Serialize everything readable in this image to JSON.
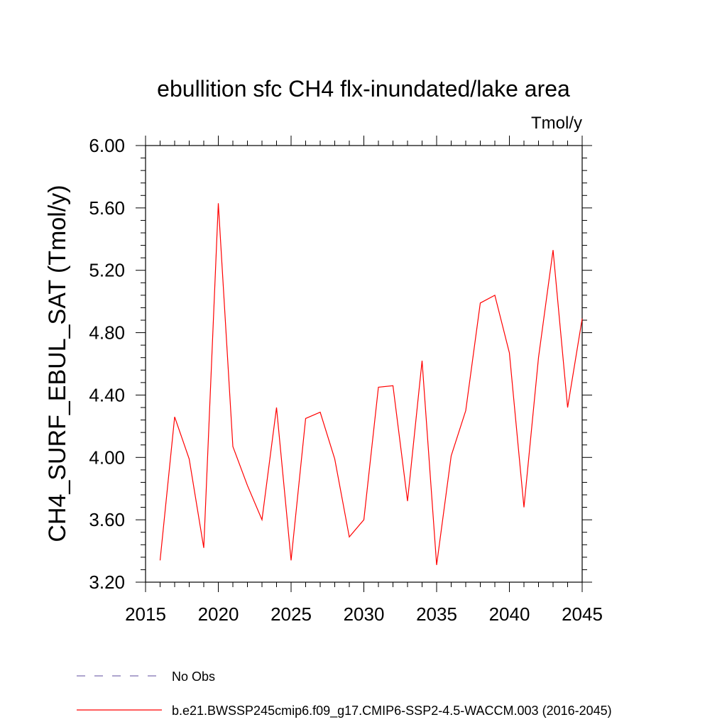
{
  "chart_data": {
    "type": "line",
    "title": "ebullition sfc CH4 flx-inundated/lake area",
    "units_label": "Tmol/y",
    "xlabel": "",
    "ylabel": "CH4_SURF_EBUL_SAT  (Tmol/y)",
    "xlim": [
      2015,
      2045
    ],
    "ylim": [
      3.2,
      6.0
    ],
    "x_ticks": [
      2015,
      2020,
      2025,
      2030,
      2035,
      2040,
      2045
    ],
    "x_tick_labels": [
      "2015",
      "2020",
      "2025",
      "2030",
      "2035",
      "2040",
      "2045"
    ],
    "y_ticks": [
      3.2,
      3.6,
      4.0,
      4.4,
      4.8,
      5.2,
      5.6,
      6.0
    ],
    "y_tick_labels": [
      "3.20",
      "3.60",
      "4.00",
      "4.40",
      "4.80",
      "5.20",
      "5.60",
      "6.00"
    ],
    "grid": false,
    "series": [
      {
        "name": "b.e21.BWSSP245cmip6.f09_g17.CMIP6-SSP2-4.5-WACCM.003 (2016-2045)",
        "color": "#ff0000",
        "x": [
          2016,
          2017,
          2018,
          2019,
          2020,
          2021,
          2022,
          2023,
          2024,
          2025,
          2026,
          2027,
          2028,
          2029,
          2030,
          2031,
          2032,
          2033,
          2034,
          2035,
          2036,
          2037,
          2038,
          2039,
          2040,
          2041,
          2042,
          2043,
          2044,
          2045
        ],
        "values": [
          3.34,
          4.26,
          3.99,
          3.42,
          5.63,
          4.07,
          3.82,
          3.6,
          4.32,
          3.34,
          4.25,
          4.29,
          3.99,
          3.49,
          3.6,
          4.45,
          4.46,
          3.72,
          4.62,
          3.31,
          4.01,
          4.3,
          4.99,
          5.04,
          4.67,
          3.68,
          4.64,
          5.33,
          4.32,
          4.89
        ]
      }
    ],
    "legend": [
      {
        "label": "No Obs",
        "style": "dashed",
        "color": "#7d6fb0"
      },
      {
        "label": "b.e21.BWSSP245cmip6.f09_g17.CMIP6-SSP2-4.5-WACCM.003 (2016-2045)",
        "style": "solid",
        "color": "#ff0000"
      }
    ],
    "legend_placement": "bottom"
  }
}
